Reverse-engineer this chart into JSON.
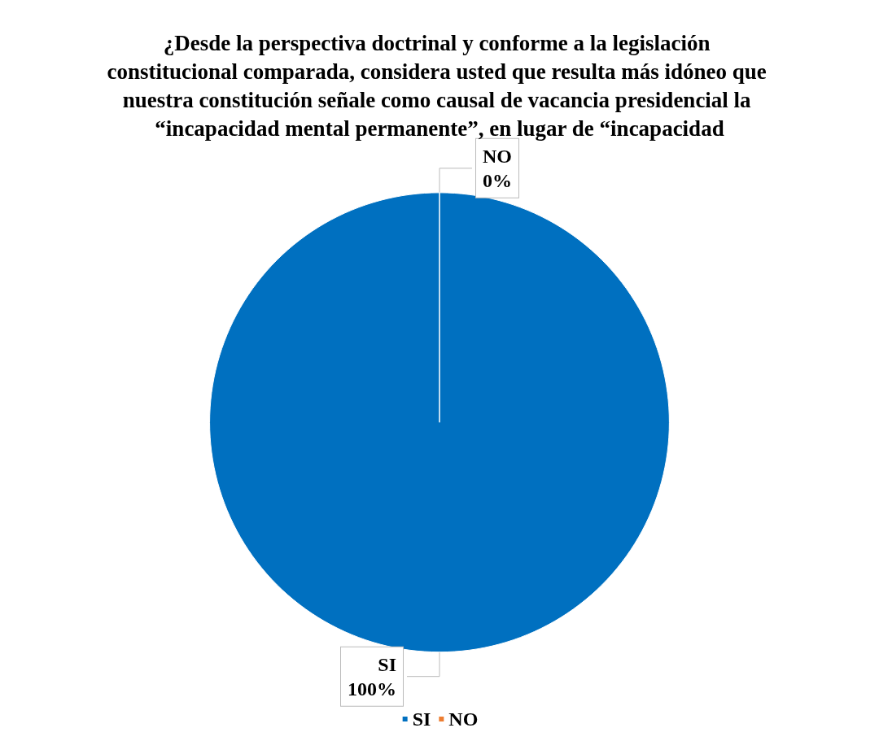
{
  "chart_data": {
    "type": "pie",
    "title": "¿Desde la perspectiva doctrinal y conforme a la legislación constitucional comparada, considera usted que resulta más idóneo que nuestra constitución señale como causal de vacancia presidencial la “incapacidad mental permanente”, en lugar de “incapacidad",
    "categories": [
      "SI",
      "NO"
    ],
    "values": [
      100,
      0
    ],
    "colors": [
      "#0070c0",
      "#ed7d31"
    ],
    "value_labels": [
      "100%",
      "0%"
    ],
    "legend": "bottom"
  }
}
